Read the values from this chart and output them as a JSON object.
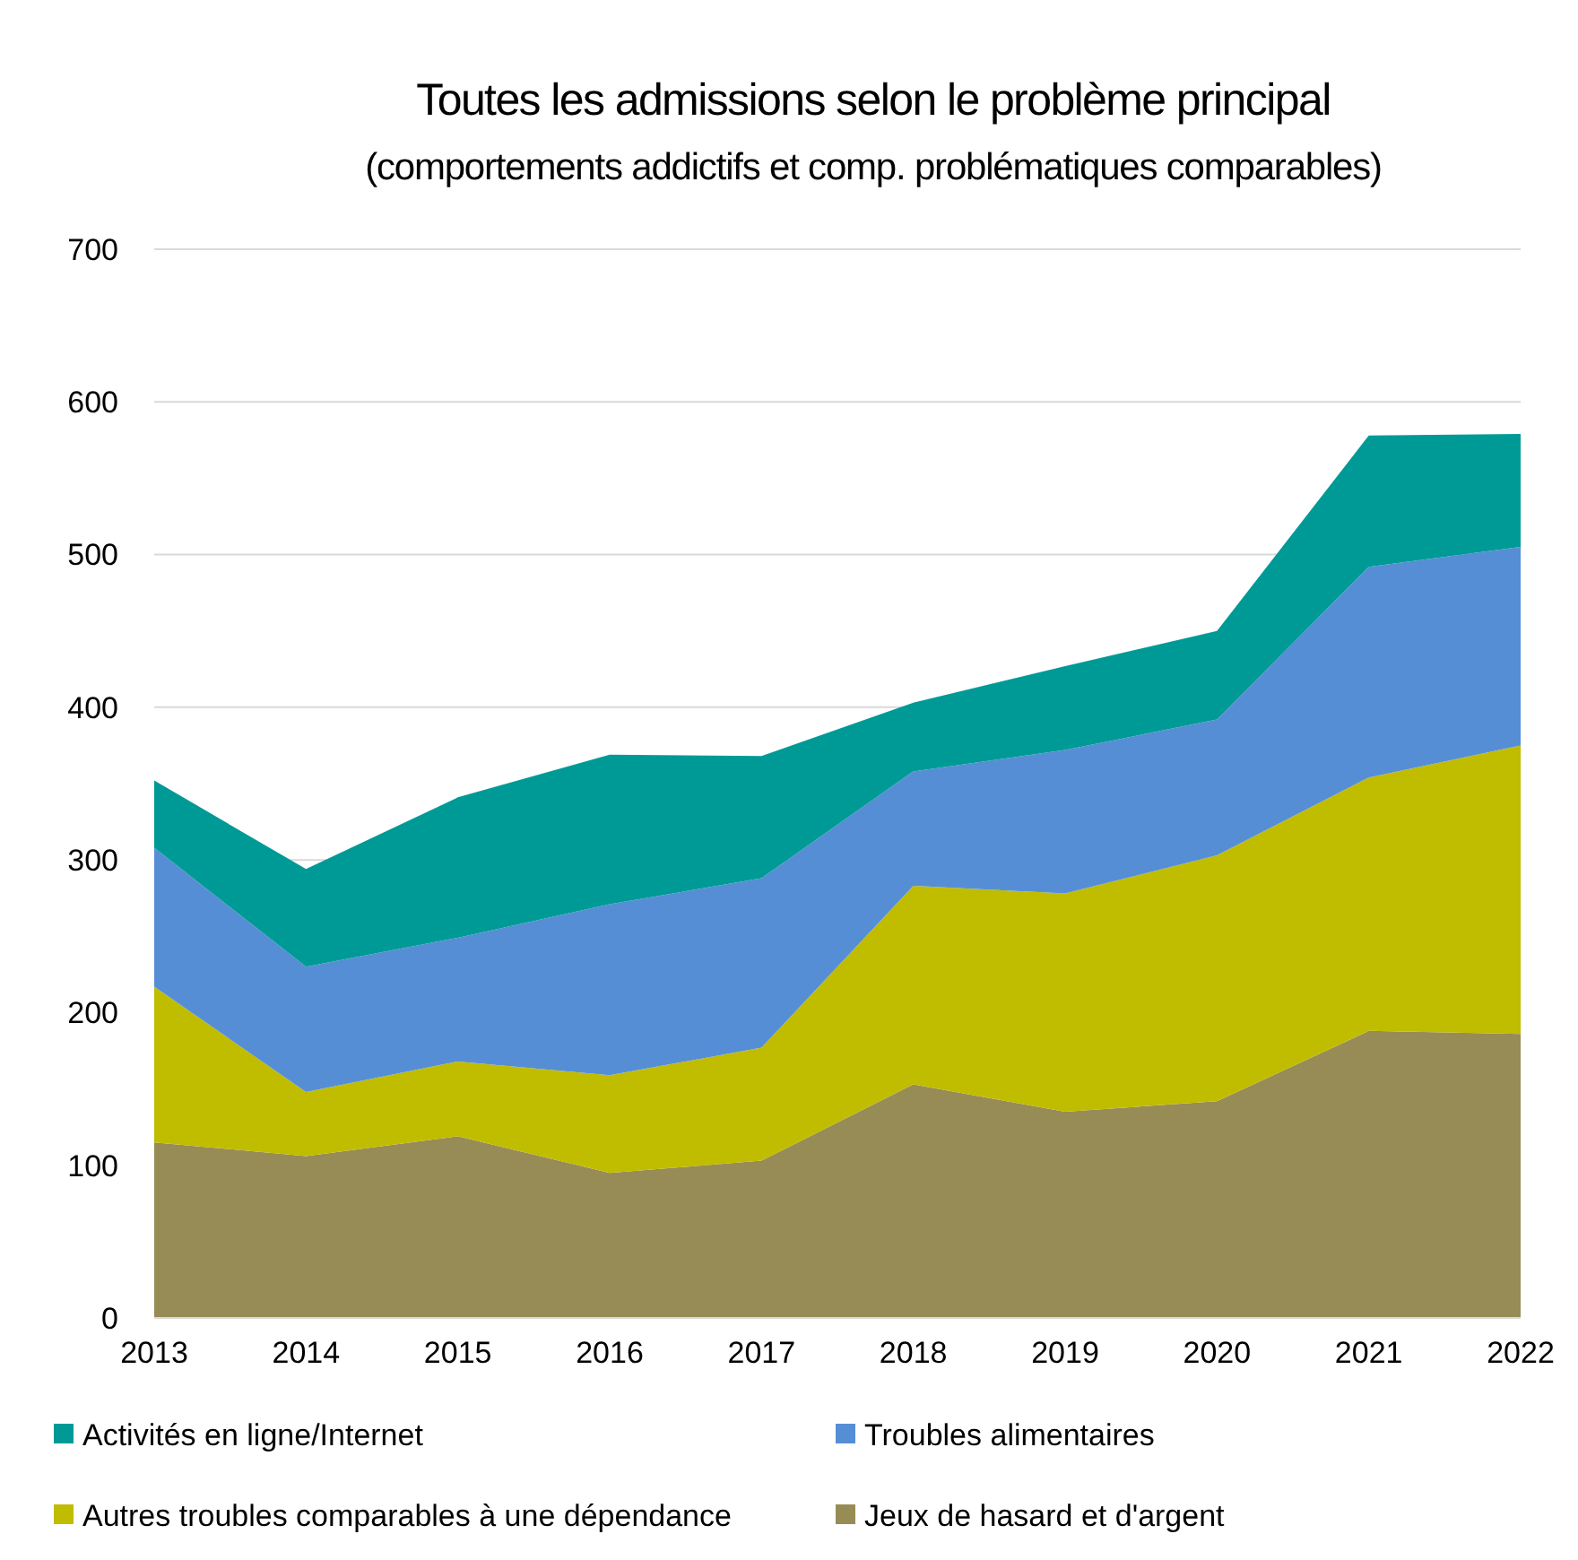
{
  "chart_data": {
    "type": "area",
    "stacked": true,
    "title": "Toutes les admissions selon le problème principal",
    "subtitle": "(comportements addictifs et comp. problématiques comparables)",
    "x": [
      2013,
      2014,
      2015,
      2016,
      2017,
      2018,
      2019,
      2020,
      2021,
      2022
    ],
    "xlim": [
      2013,
      2022
    ],
    "xticks": [
      2013,
      2014,
      2015,
      2016,
      2017,
      2018,
      2019,
      2020,
      2021,
      2022
    ],
    "ylim": [
      0,
      700
    ],
    "yticks": [
      0,
      100,
      200,
      300,
      400,
      500,
      600,
      700
    ],
    "grid": "y",
    "legend": "bottom",
    "series": [
      {
        "name": "Jeux de hasard et d'argent",
        "color": "#978c55",
        "values": [
          115,
          106,
          119,
          95,
          103,
          153,
          135,
          142,
          188,
          186
        ]
      },
      {
        "name": "Autres troubles comparables à une dépendance",
        "color": "#c0bc00",
        "values": [
          102,
          42,
          49,
          64,
          74,
          130,
          143,
          161,
          166,
          189
        ]
      },
      {
        "name": "Troubles alimentaires",
        "color": "#568ed6",
        "values": [
          91,
          82,
          81,
          112,
          111,
          75,
          94,
          89,
          138,
          130
        ]
      },
      {
        "name": "Activités en ligne/Internet",
        "color": "#009a96",
        "values": [
          44,
          64,
          92,
          98,
          80,
          45,
          55,
          58,
          86,
          74
        ]
      }
    ]
  }
}
